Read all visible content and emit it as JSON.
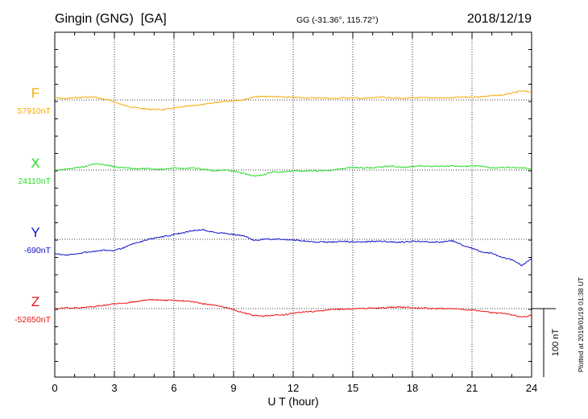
{
  "header": {
    "station": "Gingin (GNG)  [GA]",
    "coords": "GG (-31.36°, 115.72°)",
    "date": "2018/12/19"
  },
  "footer": {
    "plotted": "Plotted at 2019/01/19 01:38 UT"
  },
  "chart_data": {
    "type": "line",
    "title": "",
    "xlabel": "U T (hour)",
    "ylabel": "",
    "xlim": [
      0,
      24
    ],
    "xticks": [
      "0",
      "3",
      "6",
      "9",
      "12",
      "15",
      "18",
      "21",
      "24"
    ],
    "grid": true,
    "scale_bar": "100 nT",
    "scale_bar_nT": 100,
    "units": "nT",
    "series": [
      {
        "name": "F",
        "baseline_label": "57910nT",
        "baseline_nT": 57910,
        "color": "#f5a800",
        "x": [
          0,
          0.5,
          1,
          1.5,
          2,
          2.5,
          3,
          3.5,
          4,
          4.5,
          5,
          5.5,
          6,
          6.5,
          7,
          7.5,
          8,
          8.5,
          9,
          9.5,
          10,
          10.5,
          11,
          11.5,
          12,
          12.5,
          13,
          13.5,
          14,
          14.5,
          15,
          15.5,
          16,
          16.5,
          17,
          17.5,
          18,
          18.5,
          19,
          19.5,
          20,
          20.5,
          21,
          21.5,
          22,
          22.5,
          23,
          23.5,
          24
        ],
        "values": [
          57913,
          57912,
          57913,
          57914,
          57914,
          57911,
          57907,
          57902,
          57899,
          57897,
          57896,
          57896,
          57898,
          57900,
          57902,
          57903,
          57906,
          57908,
          57909,
          57910,
          57914,
          57915,
          57915,
          57914,
          57914,
          57913,
          57913,
          57913,
          57912,
          57913,
          57913,
          57912,
          57913,
          57914,
          57913,
          57912,
          57913,
          57913,
          57913,
          57913,
          57913,
          57914,
          57914,
          57915,
          57916,
          57917,
          57920,
          57923,
          57921
        ]
      },
      {
        "name": "X",
        "baseline_label": "24110nT",
        "baseline_nT": 24110,
        "color": "#22dd22",
        "x": [
          0,
          0.5,
          1,
          1.5,
          2,
          2.5,
          3,
          3.5,
          4,
          4.5,
          5,
          5.5,
          6,
          6.5,
          7,
          7.5,
          8,
          8.5,
          9,
          9.5,
          10,
          10.5,
          11,
          11.5,
          12,
          12.5,
          13,
          13.5,
          14,
          14.5,
          15,
          15.5,
          16,
          16.5,
          17,
          17.5,
          18,
          18.5,
          19,
          19.5,
          20,
          20.5,
          21,
          21.5,
          22,
          22.5,
          23,
          23.5,
          24
        ],
        "values": [
          24110,
          24111,
          24113,
          24115,
          24119,
          24118,
          24115,
          24113,
          24112,
          24112,
          24111,
          24111,
          24113,
          24112,
          24113,
          24111,
          24109,
          24110,
          24108,
          24105,
          24101,
          24103,
          24107,
          24107,
          24109,
          24108,
          24109,
          24109,
          24110,
          24112,
          24114,
          24113,
          24113,
          24115,
          24116,
          24114,
          24115,
          24116,
          24115,
          24116,
          24116,
          24115,
          24116,
          24115,
          24113,
          24114,
          24114,
          24113,
          24111
        ]
      },
      {
        "name": "Y",
        "baseline_label": "-690nT",
        "baseline_nT": -690,
        "color": "#1111cc",
        "x": [
          0,
          0.5,
          1,
          1.5,
          2,
          2.5,
          3,
          3.5,
          4,
          4.5,
          5,
          5.5,
          6,
          6.5,
          7,
          7.5,
          8,
          8.5,
          9,
          9.5,
          10,
          10.5,
          11,
          11.5,
          12,
          12.5,
          13,
          13.5,
          14,
          14.5,
          15,
          15.5,
          16,
          16.5,
          17,
          17.5,
          18,
          18.5,
          19,
          19.5,
          20,
          20.5,
          21,
          21.5,
          22,
          22.5,
          23,
          23.5,
          24
        ],
        "values": [
          -711,
          -713,
          -712,
          -709,
          -708,
          -706,
          -706,
          -702,
          -696,
          -692,
          -688,
          -686,
          -683,
          -680,
          -677,
          -676,
          -680,
          -681,
          -683,
          -685,
          -691,
          -690,
          -690,
          -690,
          -691,
          -692,
          -694,
          -694,
          -694,
          -693,
          -694,
          -694,
          -693,
          -693,
          -694,
          -694,
          -693,
          -693,
          -694,
          -694,
          -692,
          -698,
          -703,
          -709,
          -710,
          -716,
          -720,
          -728,
          -718
        ]
      },
      {
        "name": "Z",
        "baseline_label": "-52650nT",
        "baseline_nT": -52650,
        "color": "#ee1111",
        "x": [
          0,
          0.5,
          1,
          1.5,
          2,
          2.5,
          3,
          3.5,
          4,
          4.5,
          5,
          5.5,
          6,
          6.5,
          7,
          7.5,
          8,
          8.5,
          9,
          9.5,
          10,
          10.5,
          11,
          11.5,
          12,
          12.5,
          13,
          13.5,
          14,
          14.5,
          15,
          15.5,
          16,
          16.5,
          17,
          17.5,
          18,
          18.5,
          19,
          19.5,
          20,
          20.5,
          21,
          21.5,
          22,
          22.5,
          23,
          23.5,
          24
        ],
        "values": [
          -52651,
          -52649,
          -52649,
          -52648,
          -52647,
          -52645,
          -52643,
          -52642,
          -52640,
          -52638,
          -52637,
          -52638,
          -52638,
          -52639,
          -52640,
          -52643,
          -52645,
          -52648,
          -52652,
          -52656,
          -52660,
          -52661,
          -52660,
          -52659,
          -52657,
          -52655,
          -52654,
          -52653,
          -52651,
          -52651,
          -52650,
          -52650,
          -52649,
          -52649,
          -52648,
          -52648,
          -52649,
          -52649,
          -52650,
          -52650,
          -52650,
          -52651,
          -52652,
          -52654,
          -52656,
          -52657,
          -52659,
          -52662,
          -52660
        ]
      }
    ]
  }
}
